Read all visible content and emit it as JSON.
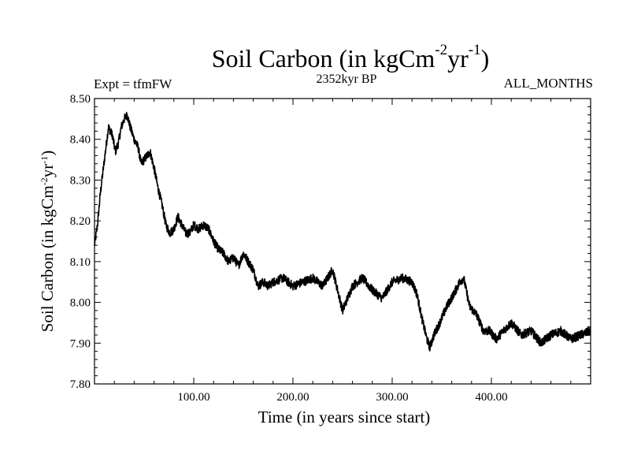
{
  "header": {
    "title_main": "Soil Carbon (in kgCm",
    "title_exp1": "-2",
    "title_mid": "yr",
    "title_exp2": "-1",
    "title_end": ")",
    "expt_label": "Expt = tfmFW",
    "period_label": "2352kyr BP",
    "season_label": "ALL_MONTHS"
  },
  "colors": {
    "line": "#000000",
    "axes": "#000000",
    "background": "#ffffff"
  },
  "chart_data": {
    "type": "line",
    "title": "Soil Carbon (in kgCm-2yr-1)",
    "xlabel": "Time (in years since start)",
    "ylabel_main": "Soil Carbon (in kgCm",
    "ylabel_exp1": "-2",
    "ylabel_mid": "yr",
    "ylabel_exp2": "-1",
    "ylabel_end": ")",
    "xlim": [
      0,
      500
    ],
    "ylim": [
      7.8,
      8.5
    ],
    "x_ticks": [
      100,
      200,
      300,
      400
    ],
    "x_tick_labels": [
      "100.00",
      "200.00",
      "300.00",
      "400.00"
    ],
    "y_ticks": [
      7.8,
      7.9,
      8.0,
      8.1,
      8.2,
      8.3,
      8.4,
      8.5
    ],
    "y_tick_labels": [
      "7.80",
      "7.90",
      "8.00",
      "8.10",
      "8.20",
      "8.30",
      "8.40",
      "8.50"
    ],
    "series": [
      {
        "name": "Soil Carbon",
        "x": [
          0,
          3,
          6,
          10,
          14,
          18,
          21,
          24,
          27,
          30,
          33,
          36,
          40,
          44,
          47,
          50,
          53,
          56,
          60,
          64,
          68,
          72,
          76,
          80,
          84,
          88,
          92,
          96,
          100,
          105,
          110,
          115,
          120,
          125,
          130,
          135,
          140,
          145,
          150,
          155,
          160,
          165,
          170,
          175,
          180,
          190,
          200,
          210,
          220,
          230,
          240,
          250,
          260,
          270,
          280,
          290,
          300,
          310,
          320,
          325,
          330,
          335,
          338,
          342,
          348,
          355,
          362,
          368,
          372,
          378,
          385,
          392,
          398,
          405,
          412,
          420,
          430,
          440,
          450,
          460,
          470,
          480,
          490,
          500
        ],
        "values": [
          8.14,
          8.19,
          8.27,
          8.35,
          8.43,
          8.41,
          8.37,
          8.39,
          8.43,
          8.45,
          8.46,
          8.43,
          8.4,
          8.38,
          8.34,
          8.35,
          8.36,
          8.37,
          8.33,
          8.28,
          8.24,
          8.19,
          8.17,
          8.18,
          8.21,
          8.19,
          8.17,
          8.17,
          8.19,
          8.18,
          8.19,
          8.18,
          8.15,
          8.13,
          8.12,
          8.1,
          8.11,
          8.09,
          8.12,
          8.1,
          8.08,
          8.04,
          8.05,
          8.04,
          8.05,
          8.06,
          8.04,
          8.05,
          8.06,
          8.04,
          8.08,
          7.98,
          8.04,
          8.06,
          8.03,
          8.01,
          8.05,
          8.06,
          8.05,
          8.02,
          7.96,
          7.91,
          7.89,
          7.92,
          7.95,
          7.99,
          8.02,
          8.05,
          8.06,
          7.99,
          7.97,
          7.93,
          7.93,
          7.91,
          7.93,
          7.95,
          7.92,
          7.93,
          7.9,
          7.92,
          7.93,
          7.91,
          7.92,
          7.93
        ]
      }
    ]
  }
}
